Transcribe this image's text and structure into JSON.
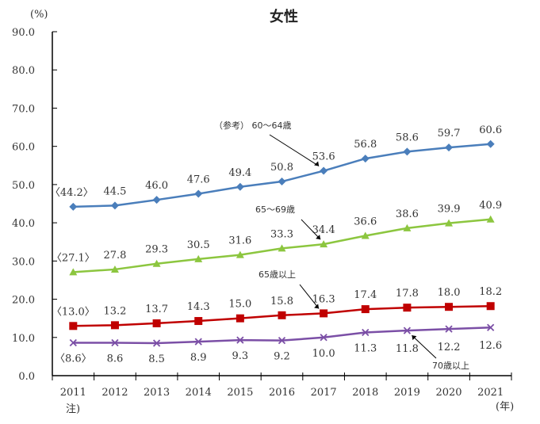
{
  "chart_data": {
    "type": "line",
    "title": "女性",
    "ylabel": "(%)",
    "xlabel": "(年)",
    "x_note": "注)",
    "categories": [
      "2011",
      "2012",
      "2013",
      "2014",
      "2015",
      "2016",
      "2017",
      "2018",
      "2019",
      "2020",
      "2021"
    ],
    "ylim": [
      0,
      90
    ],
    "yticks": [
      "0.0",
      "10.0",
      "20.0",
      "30.0",
      "40.0",
      "50.0",
      "60.0",
      "70.0",
      "80.0",
      "90.0"
    ],
    "grid": false,
    "series": [
      {
        "name": "（参考） 60～64歳",
        "color": "#4a7ebb",
        "marker": "diamond",
        "values": [
          44.2,
          44.5,
          46.0,
          47.6,
          49.4,
          50.8,
          53.6,
          56.8,
          58.6,
          59.7,
          60.6
        ],
        "labels": [
          "〈44.2〉",
          "44.5",
          "46.0",
          "47.6",
          "49.4",
          "50.8",
          "53.6",
          "56.8",
          "58.6",
          "59.7",
          "60.6"
        ]
      },
      {
        "name": "65～69歳",
        "color": "#8cc63f",
        "marker": "triangle",
        "values": [
          27.1,
          27.8,
          29.3,
          30.5,
          31.6,
          33.3,
          34.4,
          36.6,
          38.6,
          39.9,
          40.9
        ],
        "labels": [
          "〈27.1〉",
          "27.8",
          "29.3",
          "30.5",
          "31.6",
          "33.3",
          "34.4",
          "36.6",
          "38.6",
          "39.9",
          "40.9"
        ]
      },
      {
        "name": "65歳以上",
        "color": "#c00000",
        "marker": "square",
        "values": [
          13.0,
          13.2,
          13.7,
          14.3,
          15.0,
          15.8,
          16.3,
          17.4,
          17.8,
          18.0,
          18.2
        ],
        "labels": [
          "〈13.0〉",
          "13.2",
          "13.7",
          "14.3",
          "15.0",
          "15.8",
          "16.3",
          "17.4",
          "17.8",
          "18.0",
          "18.2"
        ]
      },
      {
        "name": "70歳以上",
        "color": "#7b4fa6",
        "marker": "x",
        "values": [
          8.6,
          8.6,
          8.5,
          8.9,
          9.3,
          9.2,
          10.0,
          11.3,
          11.8,
          12.2,
          12.6
        ],
        "labels": [
          "〈8.6〉",
          "8.6",
          "8.5",
          "8.9",
          "9.3",
          "9.2",
          "10.0",
          "11.3",
          "11.8",
          "12.2",
          "12.6"
        ]
      }
    ]
  }
}
